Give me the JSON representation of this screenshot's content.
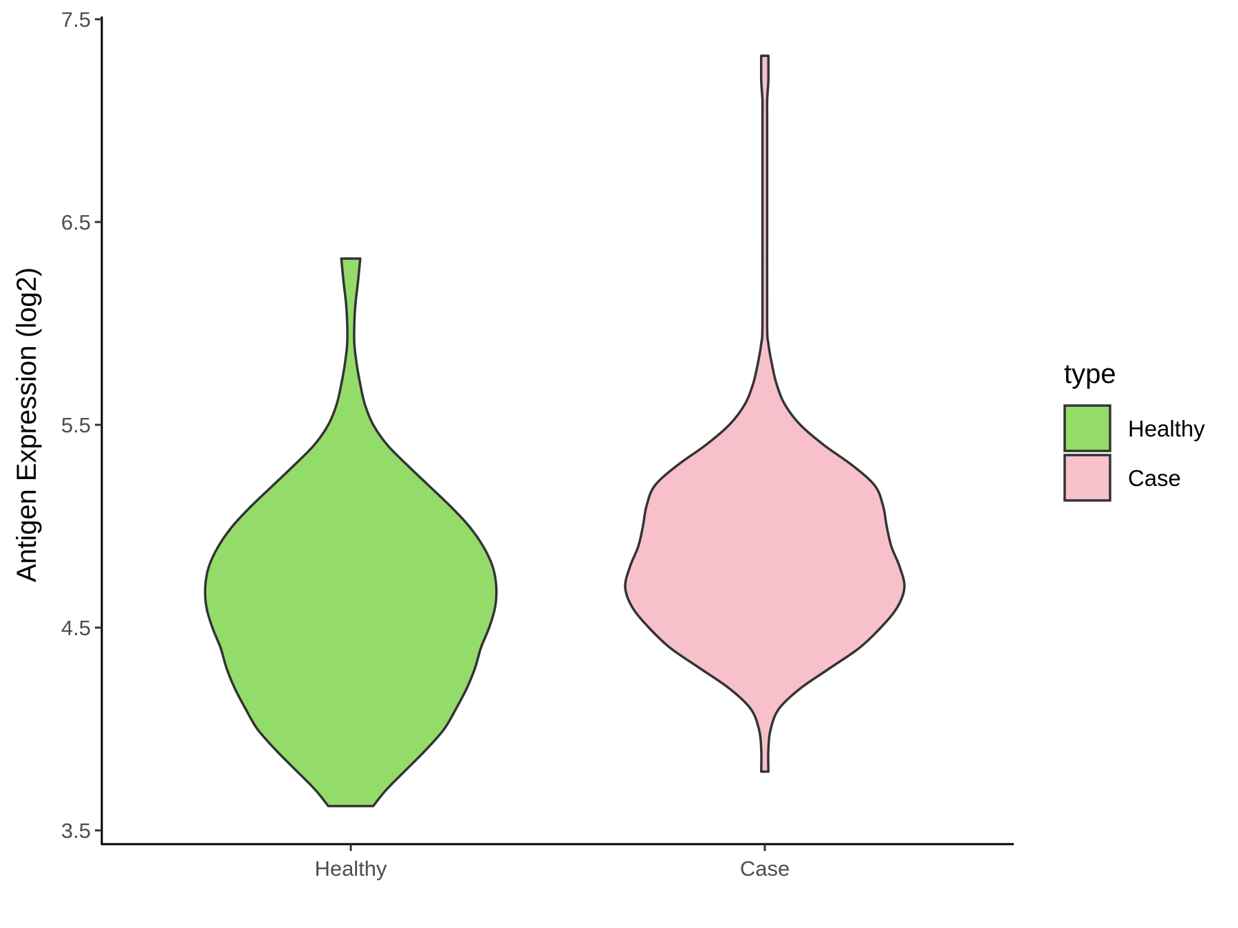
{
  "chart_data": {
    "type": "violin",
    "ylabel": "Antigen Expression (log2)",
    "xlabel": "",
    "ylim": [
      3.5,
      7.5
    ],
    "yticks": [
      "3.5",
      "4.5",
      "5.5",
      "6.5",
      "7.5"
    ],
    "categories": [
      "Healthy",
      "Case"
    ],
    "grid": false,
    "legend": {
      "title": "type",
      "position": "right",
      "entries": [
        "Healthy",
        "Case"
      ]
    },
    "series": [
      {
        "name": "Healthy",
        "color": "#93dc6a",
        "range": [
          3.62,
          6.32
        ],
        "density": [
          [
            3.62,
            0.19
          ],
          [
            3.7,
            0.3
          ],
          [
            3.8,
            0.47
          ],
          [
            3.9,
            0.64
          ],
          [
            4.0,
            0.79
          ],
          [
            4.1,
            0.89
          ],
          [
            4.2,
            0.98
          ],
          [
            4.3,
            1.05
          ],
          [
            4.4,
            1.1
          ],
          [
            4.5,
            1.17
          ],
          [
            4.6,
            1.22
          ],
          [
            4.7,
            1.23
          ],
          [
            4.8,
            1.2
          ],
          [
            4.9,
            1.12
          ],
          [
            5.0,
            1.0
          ],
          [
            5.1,
            0.84
          ],
          [
            5.2,
            0.66
          ],
          [
            5.3,
            0.48
          ],
          [
            5.4,
            0.31
          ],
          [
            5.5,
            0.19
          ],
          [
            5.6,
            0.12
          ],
          [
            5.7,
            0.08
          ],
          [
            5.8,
            0.05
          ],
          [
            5.9,
            0.03
          ],
          [
            6.0,
            0.03
          ],
          [
            6.1,
            0.04
          ],
          [
            6.2,
            0.06
          ],
          [
            6.32,
            0.08
          ]
        ]
      },
      {
        "name": "Case",
        "color": "#f8c0cb",
        "range": [
          3.79,
          7.32
        ],
        "density": [
          [
            3.79,
            0.03
          ],
          [
            3.9,
            0.03
          ],
          [
            4.0,
            0.05
          ],
          [
            4.1,
            0.12
          ],
          [
            4.2,
            0.3
          ],
          [
            4.3,
            0.55
          ],
          [
            4.4,
            0.8
          ],
          [
            4.5,
            0.98
          ],
          [
            4.6,
            1.12
          ],
          [
            4.7,
            1.18
          ],
          [
            4.8,
            1.14
          ],
          [
            4.9,
            1.07
          ],
          [
            5.0,
            1.03
          ],
          [
            5.1,
            1.0
          ],
          [
            5.2,
            0.93
          ],
          [
            5.3,
            0.74
          ],
          [
            5.4,
            0.5
          ],
          [
            5.5,
            0.3
          ],
          [
            5.6,
            0.17
          ],
          [
            5.7,
            0.1
          ],
          [
            5.8,
            0.06
          ],
          [
            5.9,
            0.03
          ],
          [
            6.0,
            0.02
          ],
          [
            6.5,
            0.02
          ],
          [
            7.0,
            0.02
          ],
          [
            7.1,
            0.02
          ],
          [
            7.2,
            0.03
          ],
          [
            7.32,
            0.03
          ]
        ]
      }
    ]
  }
}
